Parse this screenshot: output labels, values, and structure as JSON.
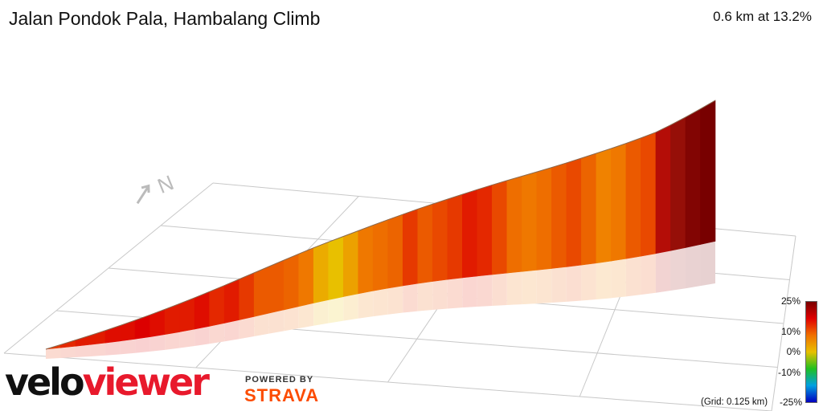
{
  "title": "Jalan Pondok Pala, Hambalang Climb",
  "summary": "0.6 km at 13.2%",
  "grid_note": "(Grid: 0.125 km)",
  "north_label": "N",
  "legend": {
    "ticks": [
      "25%",
      "10%",
      "0%",
      "-10%",
      "-25%"
    ],
    "colors": [
      "#7a0000",
      "#e00000",
      "#f07000",
      "#e8c000",
      "#20c020",
      "#00a0e0",
      "#0000c0"
    ]
  },
  "branding": {
    "logo_velo": "velo",
    "logo_viewer": "viewer",
    "powered_by": "POWERED BY",
    "strava": "STRAVA"
  },
  "chart_data": {
    "type": "area",
    "title": "Jalan Pondok Pala, Hambalang Climb",
    "subtitle": "0.6 km at 13.2%",
    "xlabel": "",
    "ylabel": "",
    "grid_km": 0.125,
    "series": [
      {
        "gradients": [
          13,
          13.5,
          14,
          14,
          14.5,
          14.5,
          15,
          14.5,
          14,
          14,
          14.5,
          13.5,
          14,
          13,
          12,
          12,
          11.5,
          10.5,
          8,
          7,
          8.5,
          10.5,
          11,
          11.5,
          13,
          12,
          12.5,
          13,
          14,
          13.5,
          12.5,
          11,
          10.5,
          11,
          12,
          12.5,
          11.5,
          10,
          10.5,
          12,
          12.5,
          17,
          19,
          21,
          22
        ]
      }
    ],
    "gradient_scale": [
      -25,
      25
    ]
  }
}
